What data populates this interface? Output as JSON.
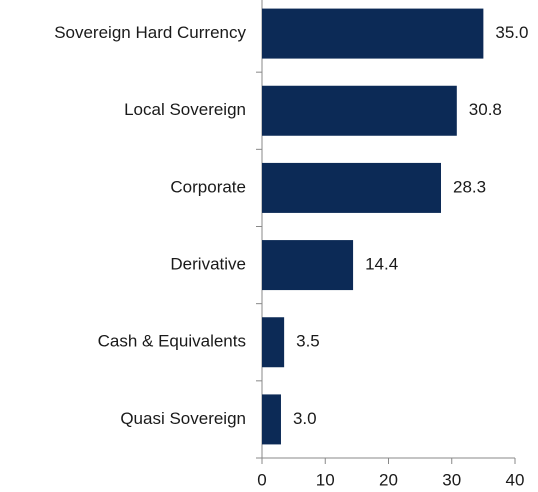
{
  "chart_data": {
    "type": "bar",
    "orientation": "horizontal",
    "categories": [
      "Sovereign Hard Currency",
      "Local Sovereign",
      "Corporate",
      "Derivative",
      "Cash & Equivalents",
      "Quasi Sovereign"
    ],
    "values": [
      35.0,
      30.8,
      28.3,
      14.4,
      3.5,
      3.0
    ],
    "value_labels": [
      "35.0",
      "30.8",
      "28.3",
      "14.4",
      "3.5",
      "3.0"
    ],
    "color": "#0c2a56",
    "xlim": [
      0,
      40
    ],
    "xticks": [
      0,
      10,
      20,
      30,
      40
    ],
    "grid": false
  }
}
